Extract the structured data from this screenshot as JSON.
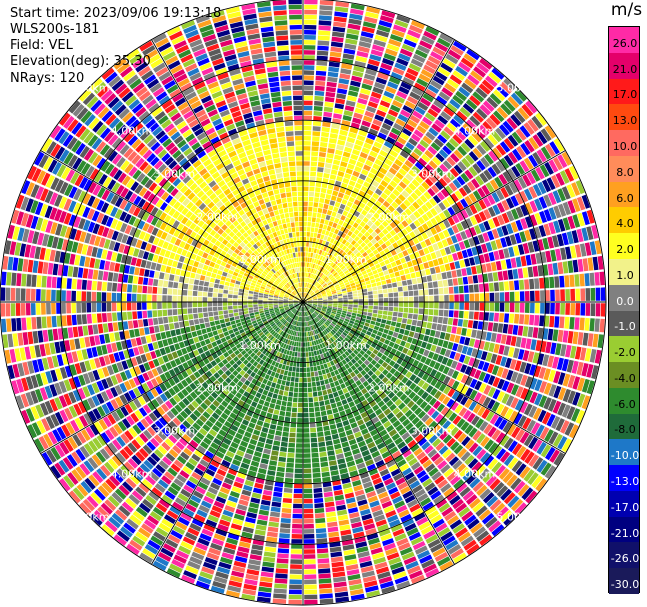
{
  "header": {
    "start_time": "Start time: 2023/09/06 19:13:18",
    "site": "WLS200s-181",
    "field": "Field: VEL",
    "elevation": "Elevation(deg): 35.30",
    "nrays": "NRays: 120"
  },
  "colorbar": {
    "unit": "m/s",
    "ticks": [
      "26.0",
      "21.0",
      "17.0",
      "13.0",
      "10.0",
      "8.0",
      "6.0",
      "4.0",
      "2.0",
      "1.0",
      "0.0",
      "-1.0",
      "-2.0",
      "-4.0",
      "-6.0",
      "-8.0",
      "-10.0",
      "-13.0",
      "-17.0",
      "-21.0",
      "-26.0",
      "-30.0"
    ],
    "colors": [
      "#ff2aa6",
      "#e4006a",
      "#ff1a1a",
      "#ff4a10",
      "#ff6a60",
      "#ff8c5a",
      "#ffa020",
      "#ffcc00",
      "#ffff20",
      "#f2f28a",
      "#808080",
      "#5a5a5a",
      "#9acd32",
      "#6b8e23",
      "#2e8b2e",
      "#1f6b3a",
      "#1e78c8",
      "#0000ff",
      "#0000b0",
      "#000080",
      "#10106a",
      "#1a1a5a"
    ]
  },
  "ring_labels": [
    "1.00km",
    "2.00km",
    "3.00km",
    "4.00km",
    "5.00km"
  ],
  "ppi": {
    "n_rays": 120,
    "max_range_km": 5.0,
    "near_field_colors_north": [
      "#ffff20",
      "#ffcc00",
      "#ffa020",
      "#f2f28a",
      "#808080"
    ],
    "near_field_colors_south": [
      "#2e8b2e",
      "#1f6b3a",
      "#6b8e23",
      "#9acd32",
      "#808080"
    ],
    "far_field_colors": [
      "#ff2aa6",
      "#e4006a",
      "#ff1a1a",
      "#0000ff",
      "#000080",
      "#ffff20",
      "#ffa020",
      "#9acd32",
      "#2e8b2e",
      "#1e78c8",
      "#808080",
      "#5a5a5a",
      "#ff6a60"
    ]
  }
}
